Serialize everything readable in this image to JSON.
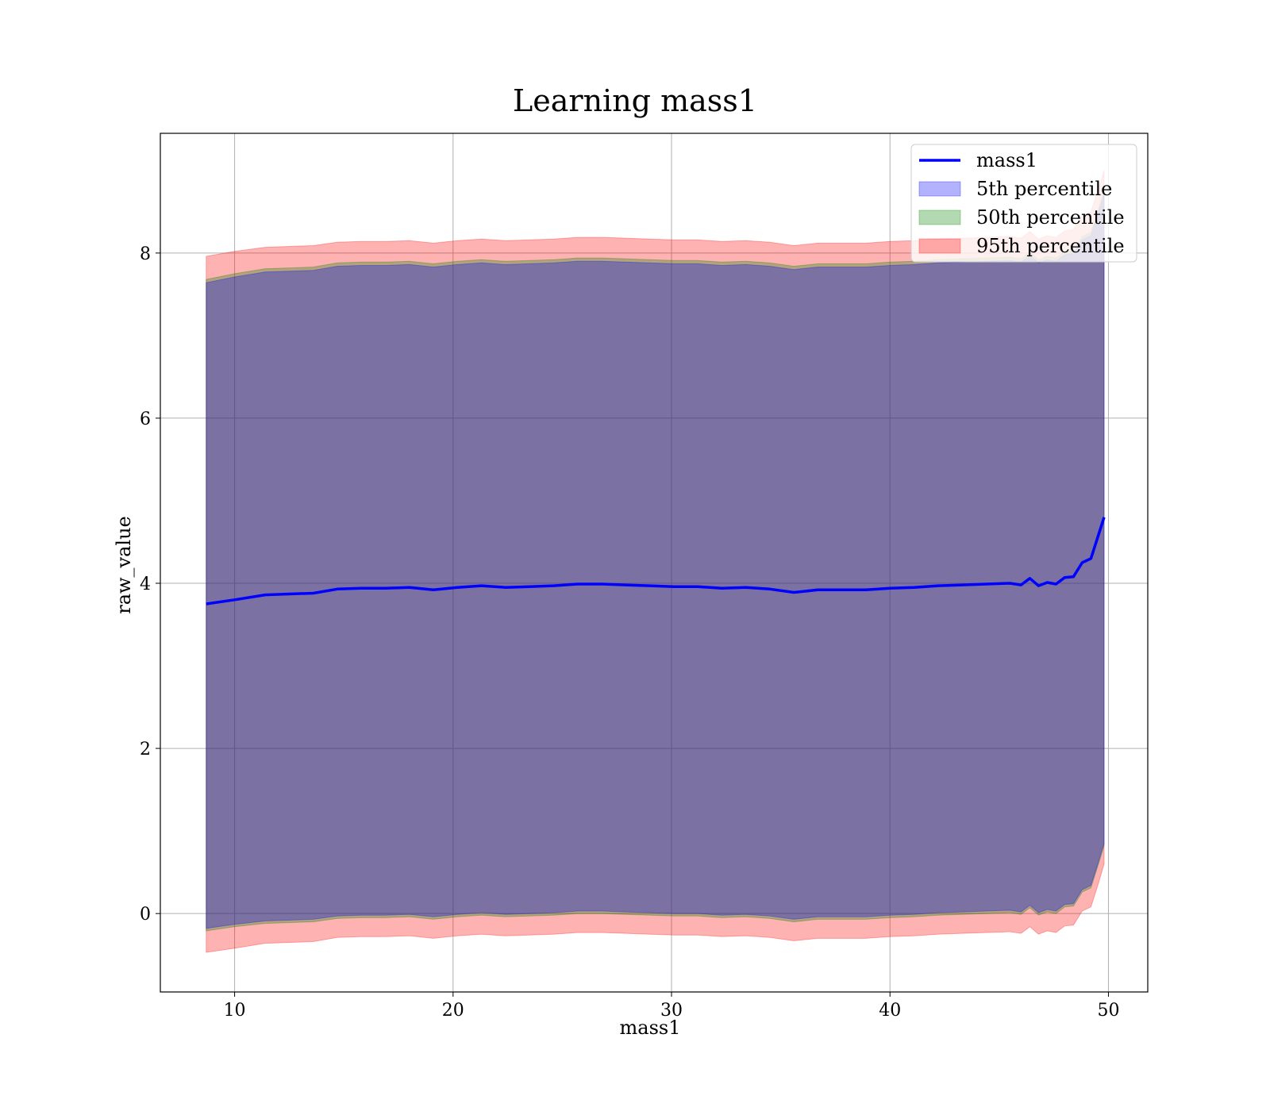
{
  "chart_data": {
    "type": "line",
    "title": "Learning mass1",
    "xlabel": "mass1",
    "ylabel": "raw_value",
    "xlim": [
      6.6,
      51.8
    ],
    "ylim": [
      -0.95,
      9.45
    ],
    "xticks": [
      10,
      20,
      30,
      40,
      50
    ],
    "yticks": [
      0,
      2,
      4,
      6,
      8
    ],
    "grid": true,
    "legend_position": "upper-right",
    "colors": {
      "line": "#0000ff",
      "band_5": "#0000ff",
      "band_50": "#008000",
      "band_95": "#ff0000",
      "grid": "#b0b0b0"
    },
    "x": [
      8.7,
      10.0,
      11.4,
      12.5,
      13.6,
      14.7,
      15.8,
      16.9,
      18.0,
      19.1,
      20.2,
      21.3,
      22.4,
      23.5,
      24.6,
      25.7,
      26.8,
      27.9,
      29.0,
      30.1,
      31.2,
      32.3,
      33.4,
      34.5,
      35.6,
      36.7,
      37.8,
      38.9,
      40.0,
      41.1,
      42.2,
      43.3,
      44.4,
      45.5,
      46.0,
      46.4,
      46.8,
      47.2,
      47.6,
      48.0,
      48.4,
      48.8,
      49.2,
      49.5,
      49.8
    ],
    "series": [
      {
        "name": "mass1",
        "values": [
          3.75,
          3.8,
          3.86,
          3.87,
          3.88,
          3.93,
          3.94,
          3.94,
          3.95,
          3.92,
          3.95,
          3.97,
          3.95,
          3.96,
          3.97,
          3.99,
          3.99,
          3.98,
          3.97,
          3.96,
          3.96,
          3.94,
          3.95,
          3.93,
          3.89,
          3.92,
          3.92,
          3.92,
          3.94,
          3.95,
          3.97,
          3.98,
          3.99,
          4.0,
          3.98,
          4.06,
          3.97,
          4.01,
          3.99,
          4.07,
          4.08,
          4.25,
          4.3,
          4.55,
          4.8
        ]
      },
      {
        "name": "5th percentile",
        "lower": [
          -0.18,
          -0.13,
          -0.09,
          -0.08,
          -0.07,
          -0.03,
          -0.02,
          -0.02,
          -0.01,
          -0.04,
          -0.01,
          0.01,
          -0.01,
          0.0,
          0.01,
          0.03,
          0.03,
          0.02,
          0.01,
          0.0,
          0.0,
          -0.02,
          -0.01,
          -0.03,
          -0.07,
          -0.04,
          -0.04,
          -0.04,
          -0.02,
          -0.01,
          0.01,
          0.02,
          0.03,
          0.04,
          0.02,
          0.1,
          0.01,
          0.05,
          0.03,
          0.11,
          0.12,
          0.29,
          0.34,
          0.59,
          0.85
        ],
        "upper": [
          7.64,
          7.71,
          7.77,
          7.78,
          7.79,
          7.84,
          7.85,
          7.85,
          7.86,
          7.83,
          7.86,
          7.88,
          7.86,
          7.87,
          7.88,
          7.9,
          7.9,
          7.89,
          7.88,
          7.87,
          7.87,
          7.85,
          7.86,
          7.84,
          7.8,
          7.83,
          7.83,
          7.83,
          7.85,
          7.86,
          7.88,
          7.89,
          7.9,
          7.91,
          7.89,
          7.97,
          7.88,
          7.92,
          7.9,
          7.98,
          7.99,
          8.16,
          8.21,
          8.46,
          8.71
        ]
      },
      {
        "name": "50th percentile",
        "lower": [
          -0.21,
          -0.16,
          -0.12,
          -0.11,
          -0.1,
          -0.06,
          -0.05,
          -0.05,
          -0.04,
          -0.07,
          -0.04,
          -0.02,
          -0.04,
          -0.03,
          -0.02,
          0.0,
          0.0,
          -0.01,
          -0.02,
          -0.03,
          -0.03,
          -0.05,
          -0.04,
          -0.06,
          -0.1,
          -0.07,
          -0.07,
          -0.07,
          -0.05,
          -0.04,
          -0.02,
          -0.01,
          0.0,
          0.01,
          -0.01,
          0.07,
          -0.02,
          0.02,
          0.0,
          0.08,
          0.09,
          0.26,
          0.31,
          0.56,
          0.82
        ],
        "upper": [
          7.68,
          7.75,
          7.81,
          7.82,
          7.83,
          7.88,
          7.89,
          7.89,
          7.9,
          7.87,
          7.9,
          7.92,
          7.9,
          7.91,
          7.92,
          7.94,
          7.94,
          7.93,
          7.92,
          7.91,
          7.91,
          7.89,
          7.9,
          7.88,
          7.84,
          7.87,
          7.87,
          7.87,
          7.89,
          7.9,
          7.92,
          7.93,
          7.94,
          7.95,
          7.93,
          8.01,
          7.92,
          7.96,
          7.94,
          8.02,
          8.03,
          8.2,
          8.25,
          8.5,
          8.75
        ]
      },
      {
        "name": "95th percentile",
        "lower": [
          -0.47,
          -0.42,
          -0.36,
          -0.35,
          -0.34,
          -0.29,
          -0.28,
          -0.28,
          -0.27,
          -0.3,
          -0.27,
          -0.25,
          -0.27,
          -0.26,
          -0.25,
          -0.23,
          -0.23,
          -0.24,
          -0.25,
          -0.26,
          -0.26,
          -0.28,
          -0.27,
          -0.29,
          -0.33,
          -0.3,
          -0.3,
          -0.3,
          -0.28,
          -0.27,
          -0.25,
          -0.24,
          -0.23,
          -0.22,
          -0.24,
          -0.16,
          -0.25,
          -0.21,
          -0.23,
          -0.15,
          -0.14,
          0.03,
          0.08,
          0.33,
          0.6
        ],
        "upper": [
          7.96,
          8.02,
          8.07,
          8.08,
          8.09,
          8.13,
          8.14,
          8.14,
          8.15,
          8.12,
          8.15,
          8.17,
          8.15,
          8.16,
          8.17,
          8.19,
          8.19,
          8.18,
          8.17,
          8.16,
          8.16,
          8.14,
          8.15,
          8.13,
          8.09,
          8.12,
          8.12,
          8.12,
          8.14,
          8.15,
          8.17,
          8.18,
          8.19,
          8.2,
          8.18,
          8.26,
          8.17,
          8.21,
          8.19,
          8.27,
          8.28,
          8.45,
          8.5,
          8.75,
          9.0
        ]
      }
    ]
  }
}
